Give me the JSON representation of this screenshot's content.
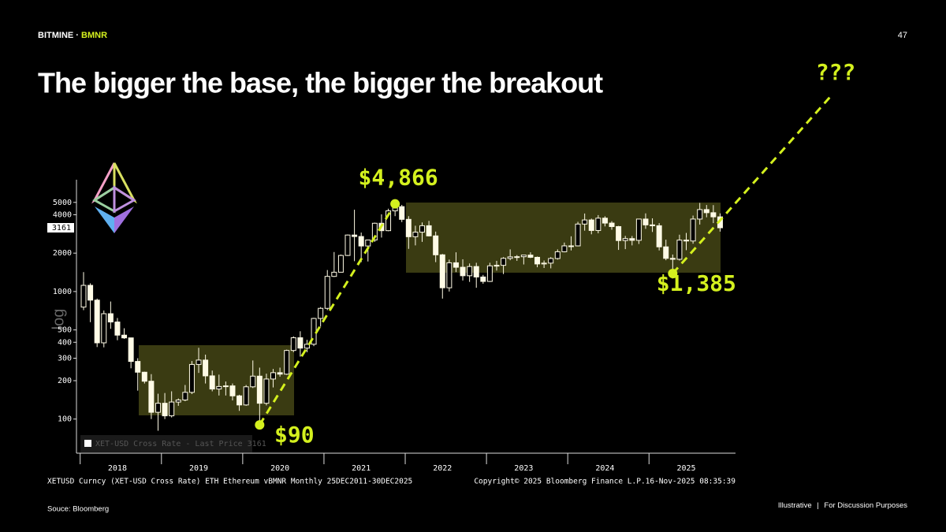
{
  "header": {
    "brand": "BITMINE",
    "separator": "·",
    "ticker": "BMNR",
    "page_number": "47"
  },
  "title": "The bigger the base, the bigger the breakout",
  "chart_data": {
    "type": "candlestick",
    "log_scale": true,
    "y_axis_label": "log",
    "ylim": [
      54,
      7530
    ],
    "yticks": [
      100,
      200,
      300,
      400,
      500,
      1000,
      2000,
      4000,
      5000
    ],
    "categories": [
      null,
      null,
      null,
      null,
      null,
      "2018",
      null,
      null,
      null,
      null,
      null,
      null,
      null,
      null,
      null,
      null,
      null,
      "2019",
      null,
      null,
      null,
      null,
      null,
      null,
      null,
      null,
      null,
      null,
      null,
      "2020",
      null,
      null,
      null,
      null,
      null,
      null,
      null,
      null,
      null,
      null,
      null,
      "2021",
      null,
      null,
      null,
      null,
      null,
      null,
      null,
      null,
      null,
      null,
      null,
      "2022",
      null,
      null,
      null,
      null,
      null,
      null,
      null,
      null,
      null,
      null,
      null,
      "2023",
      null,
      null,
      null,
      null,
      null,
      null,
      null,
      null,
      null,
      null,
      null,
      "2024",
      null,
      null,
      null,
      null,
      null,
      null,
      null,
      null,
      null,
      null,
      null,
      "2025",
      null,
      null,
      null,
      null,
      null
    ],
    "series": [
      {
        "name": "XET-USD Cross Rate - Last Price 3161",
        "color": "#fffbe6",
        "open": [
          755,
          1118,
          856,
          396,
          670,
          577,
          455,
          433,
          283,
          233,
          198,
          113,
          133,
          106,
          136,
          141,
          162,
          268,
          290,
          218,
          172,
          180,
          182,
          152,
          129,
          179,
          217,
          133,
          206,
          231,
          225,
          345,
          434,
          360,
          386,
          615,
          738,
          1314,
          1417,
          1918,
          2773,
          2700,
          2275,
          2535,
          3430,
          3000,
          4290,
          4630,
          3680,
          2690,
          2920,
          3280,
          2730,
          1940,
          1070,
          1680,
          1550,
          1330,
          1570,
          1300,
          1200,
          1590,
          1605,
          1820,
          1870,
          1875,
          1930,
          1855,
          1645,
          1670,
          1815,
          2050,
          2280,
          2280,
          3380,
          3640,
          3010,
          3760,
          3440,
          3230,
          2510,
          2600,
          2520,
          3700,
          3330,
          3280,
          2240,
          1820,
          1790,
          2530,
          2490,
          3700,
          4390,
          4150,
          3850
        ],
        "high": [
          1420,
          1160,
          880,
          710,
          835,
          620,
          515,
          435,
          300,
          235,
          225,
          158,
          160,
          165,
          145,
          185,
          285,
          362,
          320,
          240,
          223,
          197,
          190,
          155,
          185,
          288,
          253,
          227,
          247,
          253,
          350,
          445,
          488,
          418,
          622,
          755,
          1474,
          2040,
          1950,
          2800,
          4380,
          2900,
          2550,
          3470,
          4030,
          4460,
          4866,
          4780,
          3900,
          3280,
          3480,
          3580,
          2950,
          1970,
          1780,
          2030,
          1790,
          1660,
          1680,
          1350,
          1680,
          1740,
          1860,
          2140,
          1930,
          1930,
          2030,
          1880,
          1750,
          1860,
          2140,
          2420,
          2710,
          3520,
          4090,
          3730,
          3975,
          3890,
          3560,
          3270,
          2730,
          2725,
          3680,
          4100,
          3750,
          3440,
          2550,
          1950,
          2790,
          2880,
          3940,
          4950,
          4770,
          4760,
          4100
        ],
        "low": [
          715,
          575,
          367,
          365,
          510,
          415,
          425,
          250,
          167,
          190,
          100,
          81,
          100,
          103,
          127,
          138,
          157,
          230,
          190,
          165,
          153,
          153,
          140,
          116,
          127,
          175,
          90,
          128,
          177,
          215,
          222,
          335,
          309,
          334,
          373,
          530,
          715,
          1300,
          1430,
          1900,
          1730,
          1700,
          1720,
          2450,
          2650,
          2970,
          3900,
          3500,
          2160,
          2300,
          2450,
          2700,
          1700,
          880,
          1000,
          1420,
          1220,
          1190,
          1070,
          1150,
          1190,
          1460,
          1370,
          1760,
          1740,
          1630,
          1830,
          1550,
          1530,
          1520,
          1780,
          2030,
          2100,
          2260,
          3000,
          2810,
          2860,
          3240,
          3050,
          2120,
          2150,
          2300,
          2360,
          3100,
          2930,
          2100,
          1760,
          1385,
          1750,
          2110,
          2370,
          3350,
          3820,
          3440,
          2950
        ],
        "close": [
          1118,
          856,
          396,
          670,
          577,
          455,
          433,
          283,
          233,
          198,
          113,
          133,
          106,
          136,
          141,
          162,
          268,
          290,
          218,
          172,
          180,
          182,
          152,
          129,
          179,
          217,
          133,
          206,
          231,
          225,
          345,
          434,
          360,
          386,
          615,
          738,
          1314,
          1417,
          1918,
          2773,
          2700,
          2275,
          2535,
          3430,
          3000,
          4290,
          4630,
          3680,
          2690,
          2920,
          3280,
          2730,
          1940,
          1070,
          1680,
          1550,
          1330,
          1570,
          1300,
          1200,
          1590,
          1605,
          1820,
          1870,
          1875,
          1930,
          1855,
          1645,
          1670,
          1815,
          2050,
          2280,
          2280,
          3380,
          3640,
          3010,
          3760,
          3440,
          3230,
          2510,
          2600,
          2520,
          3700,
          3330,
          3280,
          2240,
          1820,
          1790,
          2530,
          2490,
          3700,
          4390,
          4150,
          3850,
          3161
        ]
      }
    ],
    "annotations": [
      {
        "label": "$4,866",
        "value": 4866
      },
      {
        "label": "$90",
        "value": 90
      },
      {
        "label": "$1,385",
        "value": 1385
      }
    ],
    "projection_label": "???",
    "footer_left": "XETUSD Curncy (XET-USD Cross Rate) ETH Ethereum vBMNR Monthly 25DEC2011-30DEC2025",
    "footer_center": "Copyright© 2025 Bloomberg Finance L.P.",
    "footer_right": "16-Nov-2025 08:35:39"
  },
  "source": "Souce: Bloomberg",
  "disclaimer": {
    "left": "Illustrative",
    "divider": "|",
    "right": "For Discussion Purposes"
  }
}
